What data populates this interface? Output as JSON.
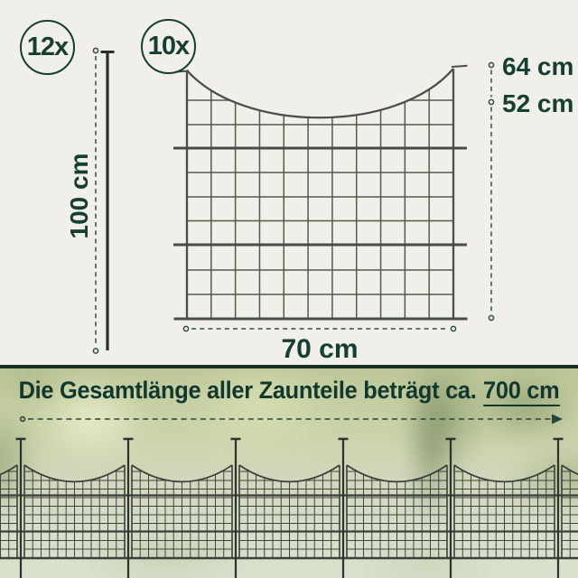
{
  "counts": {
    "stakes_label": "12x",
    "panels_label": "10x"
  },
  "measurements": {
    "stake_height": "100 cm",
    "panel_height_outer": "64 cm",
    "panel_height_inner": "52 cm",
    "panel_width": "70 cm"
  },
  "banner": {
    "text_prefix": "Die Gesamtlänge aller Zaunteile beträgt ca.",
    "total_length": "700 cm"
  },
  "colors": {
    "background": "#f0efe9",
    "accent_green": "#163e32",
    "wire_gray": "#4c524b",
    "stake_dark": "#2b2f2a",
    "bottom_wire": "#3e443d",
    "banner_text": "#12372d"
  }
}
